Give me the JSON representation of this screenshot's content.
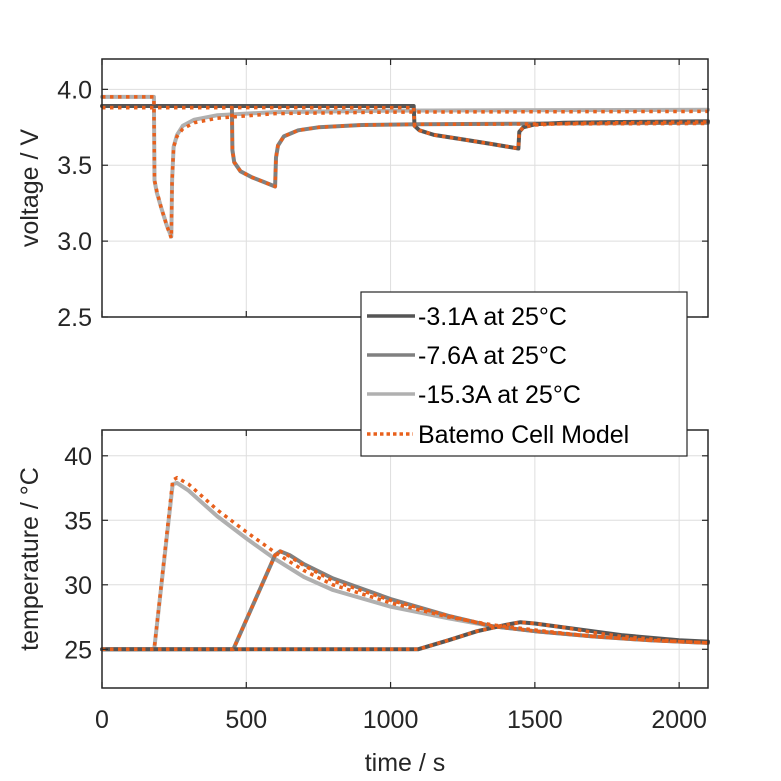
{
  "chart_data": [
    {
      "type": "line",
      "panel": "top",
      "title": "",
      "xlabel": "",
      "ylabel": "voltage / V",
      "xlim": [
        0,
        2100
      ],
      "ylim": [
        2.5,
        4.2
      ],
      "xticks": [
        0,
        500,
        1000,
        1500,
        2000
      ],
      "yticks": [
        2.5,
        3.0,
        3.5,
        4.0
      ],
      "ytick_labels": [
        "2.5",
        "3.0",
        "3.5",
        "4.0"
      ],
      "grid": true,
      "series": [
        {
          "name": "-15.3A at 25°C",
          "color": "#b0b0b0",
          "style": "solid",
          "x": [
            0,
            180,
            182,
            190,
            205,
            225,
            240,
            243,
            248,
            260,
            280,
            320,
            400,
            600,
            1000,
            2100
          ],
          "y": [
            3.95,
            3.95,
            3.4,
            3.32,
            3.22,
            3.1,
            3.03,
            3.4,
            3.62,
            3.7,
            3.76,
            3.8,
            3.83,
            3.85,
            3.86,
            3.865
          ]
        },
        {
          "name": "-7.6A at 25°C",
          "color": "#808080",
          "style": "solid",
          "x": [
            0,
            450,
            452,
            458,
            480,
            520,
            560,
            600,
            603,
            610,
            630,
            680,
            750,
            900,
            1100,
            2100
          ],
          "y": [
            3.89,
            3.89,
            3.6,
            3.52,
            3.46,
            3.42,
            3.39,
            3.36,
            3.55,
            3.63,
            3.69,
            3.73,
            3.75,
            3.765,
            3.77,
            3.78
          ]
        },
        {
          "name": "-3.1A at 25°C",
          "color": "#555555",
          "style": "solid",
          "x": [
            0,
            1080,
            1083,
            1100,
            1150,
            1250,
            1350,
            1443,
            1446,
            1460,
            1500,
            1600,
            1800,
            2100
          ],
          "y": [
            3.89,
            3.89,
            3.76,
            3.73,
            3.7,
            3.67,
            3.64,
            3.61,
            3.72,
            3.75,
            3.77,
            3.78,
            3.785,
            3.79
          ]
        },
        {
          "name": "Batemo Cell Model",
          "color": "#e8601c",
          "style": "dotted",
          "refers_to": "-15.3A at 25°C",
          "x": [
            0,
            180,
            182,
            190,
            205,
            225,
            240,
            243,
            248,
            260,
            280,
            320,
            400,
            600,
            1000,
            2100
          ],
          "y": [
            3.95,
            3.95,
            3.4,
            3.33,
            3.22,
            3.1,
            3.02,
            3.4,
            3.62,
            3.69,
            3.74,
            3.78,
            3.81,
            3.84,
            3.85,
            3.855
          ]
        },
        {
          "name": "Batemo Cell Model",
          "color": "#e8601c",
          "style": "dotted",
          "refers_to": "-7.6A at 25°C",
          "x": [
            0,
            450,
            452,
            458,
            480,
            520,
            560,
            600,
            603,
            610,
            630,
            680,
            750,
            900,
            1100,
            2100
          ],
          "y": [
            3.88,
            3.88,
            3.6,
            3.52,
            3.46,
            3.42,
            3.39,
            3.36,
            3.55,
            3.63,
            3.69,
            3.73,
            3.75,
            3.765,
            3.77,
            3.775
          ]
        },
        {
          "name": "Batemo Cell Model",
          "color": "#e8601c",
          "style": "dotted",
          "refers_to": "-3.1A at 25°C",
          "x": [
            0,
            1080,
            1083,
            1100,
            1150,
            1250,
            1350,
            1443,
            1446,
            1460,
            1500,
            1600,
            1800,
            2100
          ],
          "y": [
            3.88,
            3.88,
            3.76,
            3.73,
            3.7,
            3.67,
            3.64,
            3.61,
            3.72,
            3.75,
            3.765,
            3.775,
            3.78,
            3.785
          ]
        }
      ]
    },
    {
      "type": "line",
      "panel": "bottom",
      "title": "",
      "xlabel": "time / s",
      "ylabel": "temperature / °C",
      "xlim": [
        0,
        2100
      ],
      "ylim": [
        22,
        42
      ],
      "xticks": [
        0,
        500,
        1000,
        1500,
        2000
      ],
      "xtick_labels": [
        "0",
        "500",
        "1000",
        "1500",
        "2000"
      ],
      "yticks": [
        25,
        30,
        35,
        40
      ],
      "ytick_labels": [
        "25",
        "30",
        "35",
        "40"
      ],
      "grid": true,
      "series": [
        {
          "name": "-15.3A at 25°C",
          "color": "#b0b0b0",
          "style": "solid",
          "x": [
            0,
            181,
            245,
            260,
            300,
            400,
            500,
            600,
            700,
            800,
            1000,
            1200,
            1350,
            1500,
            1700,
            1900,
            2100
          ],
          "y": [
            25,
            25,
            37.8,
            37.9,
            37.3,
            35.3,
            33.6,
            32.0,
            30.6,
            29.6,
            28.3,
            27.4,
            26.8,
            26.4,
            26.0,
            25.7,
            25.5
          ]
        },
        {
          "name": "-7.6A at 25°C",
          "color": "#808080",
          "style": "solid",
          "x": [
            0,
            455,
            600,
            618,
            650,
            700,
            800,
            1000,
            1200,
            1350,
            1500,
            1700,
            1900,
            2100
          ],
          "y": [
            25,
            25,
            32.3,
            32.6,
            32.3,
            31.6,
            30.5,
            28.9,
            27.6,
            26.8,
            26.4,
            26.0,
            25.7,
            25.5
          ]
        },
        {
          "name": "-3.1A at 25°C",
          "color": "#555555",
          "style": "solid",
          "x": [
            0,
            1095,
            1200,
            1300,
            1400,
            1450,
            1500,
            1600,
            1700,
            1800,
            1900,
            2000,
            2100
          ],
          "y": [
            25,
            25,
            25.7,
            26.4,
            26.9,
            27.1,
            27.0,
            26.7,
            26.4,
            26.1,
            25.9,
            25.7,
            25.6
          ]
        },
        {
          "name": "Batemo Cell Model",
          "color": "#e8601c",
          "style": "dotted",
          "refers_to": "-15.3A at 25°C",
          "x": [
            0,
            181,
            245,
            260,
            300,
            400,
            500,
            600,
            700,
            800,
            1000,
            1200,
            1350,
            1500,
            1700,
            1900,
            2100
          ],
          "y": [
            25,
            25,
            38.1,
            38.3,
            37.8,
            35.8,
            34.1,
            32.5,
            31.1,
            30.0,
            28.6,
            27.5,
            26.9,
            26.5,
            26.0,
            25.7,
            25.5
          ]
        },
        {
          "name": "Batemo Cell Model",
          "color": "#e8601c",
          "style": "dotted",
          "refers_to": "-7.6A at 25°C",
          "x": [
            0,
            455,
            600,
            618,
            650,
            700,
            800,
            1000,
            1200,
            1350,
            1500,
            1700,
            1900,
            2100
          ],
          "y": [
            25,
            25,
            32.3,
            32.6,
            32.2,
            31.5,
            30.3,
            28.8,
            27.6,
            26.8,
            26.4,
            26.0,
            25.7,
            25.5
          ]
        },
        {
          "name": "Batemo Cell Model",
          "color": "#e8601c",
          "style": "dotted",
          "refers_to": "-3.1A at 25°C",
          "x": [
            0,
            1095,
            1200,
            1300,
            1400,
            1450,
            1500,
            1600,
            1700,
            1800,
            1900,
            2000,
            2100
          ],
          "y": [
            25,
            25,
            25.7,
            26.4,
            26.9,
            27.1,
            27.0,
            26.7,
            26.3,
            26.0,
            25.8,
            25.6,
            25.5
          ]
        }
      ]
    }
  ],
  "legend": {
    "placement": "between panels, right",
    "entries": [
      {
        "label": "-3.1A at 25°C",
        "color": "#555555",
        "style": "solid"
      },
      {
        "label": "-7.6A at 25°C",
        "color": "#808080",
        "style": "solid"
      },
      {
        "label": "-15.3A at 25°C",
        "color": "#b0b0b0",
        "style": "solid"
      },
      {
        "label": "Batemo Cell Model",
        "color": "#e8601c",
        "style": "dotted"
      }
    ]
  }
}
